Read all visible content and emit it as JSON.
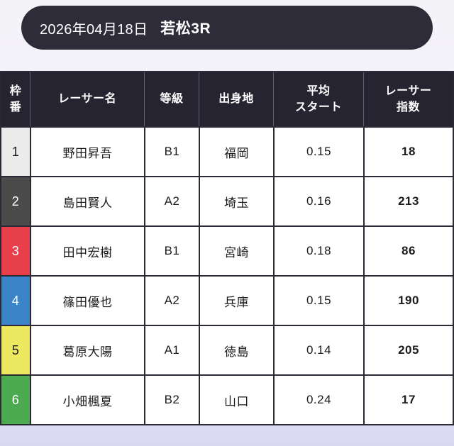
{
  "header": {
    "date": "2026年04月18日",
    "race": "若松3R"
  },
  "table": {
    "columns": [
      {
        "label": "枠\n番"
      },
      {
        "label": "レーサー名"
      },
      {
        "label": "等級"
      },
      {
        "label": "出身地"
      },
      {
        "label": "平均\nスタート"
      },
      {
        "label": "レーサー\n指数"
      }
    ],
    "rows": [
      {
        "frame": "1",
        "name": "野田昇吾",
        "grade": "B1",
        "origin": "福岡",
        "avg_start": "0.15",
        "index": "18",
        "frame_bg": "#ebebeb",
        "frame_fg": "#1b1b1b"
      },
      {
        "frame": "2",
        "name": "島田賢人",
        "grade": "A2",
        "origin": "埼玉",
        "avg_start": "0.16",
        "index": "213",
        "frame_bg": "#4b4b4b",
        "frame_fg": "#ffffff"
      },
      {
        "frame": "3",
        "name": "田中宏樹",
        "grade": "B1",
        "origin": "宮崎",
        "avg_start": "0.18",
        "index": "86",
        "frame_bg": "#e7404a",
        "frame_fg": "#ffffff"
      },
      {
        "frame": "4",
        "name": "篠田優也",
        "grade": "A2",
        "origin": "兵庫",
        "avg_start": "0.15",
        "index": "190",
        "frame_bg": "#3b84c7",
        "frame_fg": "#ffffff"
      },
      {
        "frame": "5",
        "name": "葛原大陽",
        "grade": "A1",
        "origin": "徳島",
        "avg_start": "0.14",
        "index": "205",
        "frame_bg": "#ece960",
        "frame_fg": "#1b1b1b"
      },
      {
        "frame": "6",
        "name": "小畑楓夏",
        "grade": "B2",
        "origin": "山口",
        "avg_start": "0.24",
        "index": "17",
        "frame_bg": "#4cab51",
        "frame_fg": "#ffffff"
      }
    ]
  },
  "colors": {
    "title_bar_bg": "#2e2c39",
    "table_header_bg": "#262430",
    "page_bg_top": "#f4f3f8",
    "page_bg_bottom": "#d9d8f1"
  }
}
